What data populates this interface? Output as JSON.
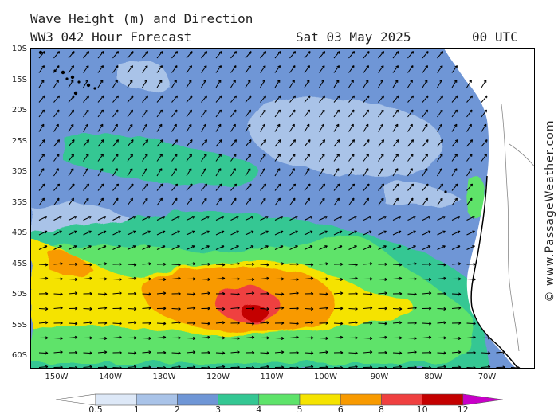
{
  "header": {
    "title": "Wave Height (m) and Direction",
    "model_line": "WW3 042 Hour Forecast",
    "date": "Sat 03 May 2025",
    "time": "00 UTC"
  },
  "credit": "© www.PassageWeather.com",
  "map": {
    "lat_labels": [
      "10S",
      "15S",
      "20S",
      "25S",
      "30S",
      "35S",
      "40S",
      "45S",
      "50S",
      "55S",
      "60S"
    ],
    "lon_labels": [
      "150W",
      "140W",
      "130W",
      "120W",
      "110W",
      "100W",
      "90W",
      "80W",
      "70W"
    ],
    "colors": {
      "ocean_2_3": "#6f96d6",
      "ocean_1_2": "#a9c3e8",
      "ocean_3_4": "#34c793",
      "ocean_4_5": "#5ee36a",
      "ocean_5_6": "#f5e300",
      "ocean_6_8": "#f89a00",
      "ocean_8_10": "#ef4040",
      "ocean_10_12": "#c40000",
      "land": "#ffffff",
      "arrow": "#000000"
    },
    "wave_direction": "toward northeast in the north, toward east in the south"
  },
  "legend": {
    "levels": [
      "0.5",
      "1",
      "2",
      "3",
      "4",
      "5",
      "6",
      "8",
      "10",
      "12"
    ],
    "bin_colors": [
      "#dde8f7",
      "#a9c3e8",
      "#6f96d6",
      "#34c793",
      "#5ee36a",
      "#f5e300",
      "#f89a00",
      "#ef4040",
      "#c40000"
    ],
    "low_end_color": "#ffffff",
    "high_end_color": "#c800c8"
  }
}
